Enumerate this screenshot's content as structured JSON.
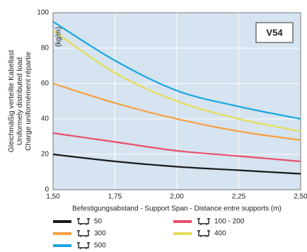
{
  "chart_data": {
    "type": "line",
    "annotation": "V54",
    "y_unit": "(kg/m)",
    "y_label": [
      "Gleichmäßig verteilte Kabellast",
      "Uniformely distributed load",
      "Charge uniformément répartie"
    ],
    "x_label": "Befestigungsabstand - Support Span - Distance entre supports (m)",
    "x": [
      1.5,
      1.75,
      2.0,
      2.25,
      2.5
    ],
    "xlim": [
      1.5,
      2.5
    ],
    "xticks": [
      {
        "value": 1.5,
        "label": "1,50"
      },
      {
        "value": 1.75,
        "label": "1,75"
      },
      {
        "value": 2.0,
        "label": "2,00"
      },
      {
        "value": 2.25,
        "label": "2,25"
      },
      {
        "value": 2.5,
        "label": "2,50"
      }
    ],
    "ylim": [
      0,
      100
    ],
    "yticks": [
      0,
      20,
      40,
      60,
      80,
      100
    ],
    "grid": true,
    "series": [
      {
        "name": "50",
        "color": "#1a1a1a",
        "values": [
          20,
          16,
          13,
          11,
          9
        ]
      },
      {
        "name": "100 - 200",
        "color": "#e8506a",
        "values": [
          32,
          27,
          22,
          19,
          16
        ]
      },
      {
        "name": "300",
        "color": "#f5a040",
        "values": [
          60,
          49,
          40,
          33,
          28
        ]
      },
      {
        "name": "400",
        "color": "#e3de5a",
        "values": [
          90,
          66,
          50,
          40,
          33
        ]
      },
      {
        "name": "500",
        "color": "#1aa8e0",
        "values": [
          95,
          73,
          56,
          47,
          40
        ]
      }
    ]
  }
}
